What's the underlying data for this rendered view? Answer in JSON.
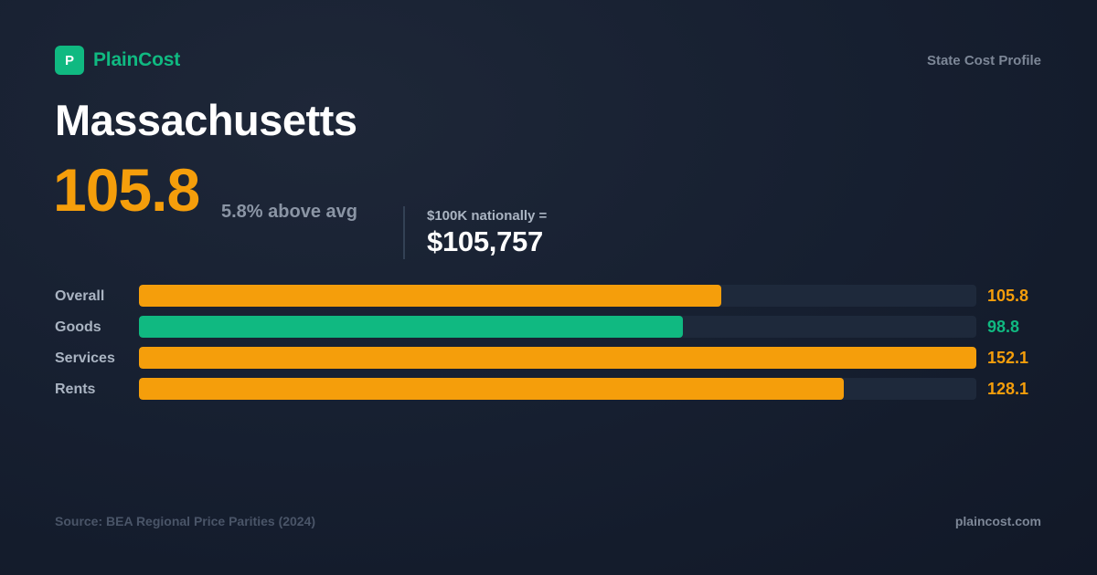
{
  "brand": {
    "logo_letter": "P",
    "name": "PlainCost"
  },
  "header": {
    "label": "State Cost Profile"
  },
  "state": {
    "name": "Massachusetts"
  },
  "index": {
    "value": "105.8",
    "diff": "5.8% above avg"
  },
  "equivalent": {
    "label": "$100K nationally =",
    "value": "$105,757"
  },
  "colors": {
    "above": "#f59e0b",
    "below": "#10b981",
    "track": "#1e293b"
  },
  "chart_data": {
    "type": "bar",
    "orientation": "horizontal",
    "categories": [
      "Overall",
      "Goods",
      "Services",
      "Rents"
    ],
    "values": [
      105.8,
      98.8,
      152.1,
      128.1
    ],
    "value_labels": [
      "105.8",
      "98.8",
      "152.1",
      "128.1"
    ],
    "series_colors": [
      "#f59e0b",
      "#10b981",
      "#f59e0b",
      "#f59e0b"
    ],
    "xlim": [
      0,
      152.1
    ],
    "grid": false
  },
  "footer": {
    "source": "Source: BEA Regional Price Parities (2024)",
    "url": "plaincost.com"
  }
}
